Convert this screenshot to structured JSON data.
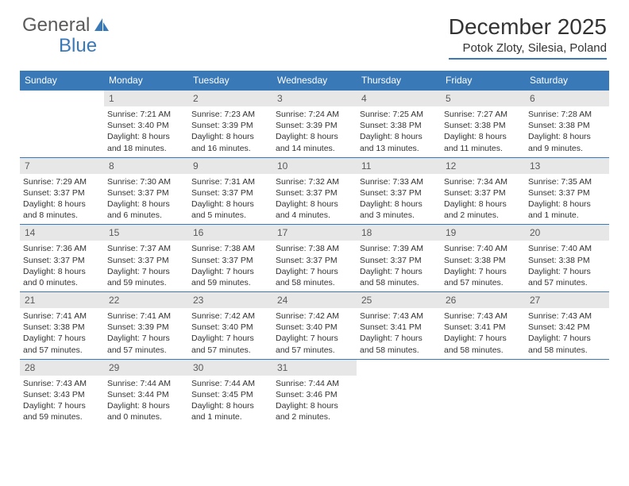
{
  "logo": {
    "text1": "General",
    "text2": "Blue"
  },
  "title": "December 2025",
  "location": "Potok Zloty, Silesia, Poland",
  "colors": {
    "header_bg": "#3a79b7",
    "header_text": "#ffffff",
    "daynum_bg": "#e7e7e7",
    "daynum_text": "#5a5a5a",
    "border": "#3a79b7",
    "body_text": "#333333",
    "background": "#ffffff"
  },
  "fonts": {
    "title_size": 28,
    "location_size": 15,
    "dayhead_size": 12,
    "daynum_size": 12,
    "info_size": 10.5
  },
  "daynames": [
    "Sunday",
    "Monday",
    "Tuesday",
    "Wednesday",
    "Thursday",
    "Friday",
    "Saturday"
  ],
  "weeks": [
    [
      {
        "blank": true
      },
      {
        "n": "1",
        "sr": "7:21 AM",
        "ss": "3:40 PM",
        "dl": "8 hours and 18 minutes."
      },
      {
        "n": "2",
        "sr": "7:23 AM",
        "ss": "3:39 PM",
        "dl": "8 hours and 16 minutes."
      },
      {
        "n": "3",
        "sr": "7:24 AM",
        "ss": "3:39 PM",
        "dl": "8 hours and 14 minutes."
      },
      {
        "n": "4",
        "sr": "7:25 AM",
        "ss": "3:38 PM",
        "dl": "8 hours and 13 minutes."
      },
      {
        "n": "5",
        "sr": "7:27 AM",
        "ss": "3:38 PM",
        "dl": "8 hours and 11 minutes."
      },
      {
        "n": "6",
        "sr": "7:28 AM",
        "ss": "3:38 PM",
        "dl": "8 hours and 9 minutes."
      }
    ],
    [
      {
        "n": "7",
        "sr": "7:29 AM",
        "ss": "3:37 PM",
        "dl": "8 hours and 8 minutes."
      },
      {
        "n": "8",
        "sr": "7:30 AM",
        "ss": "3:37 PM",
        "dl": "8 hours and 6 minutes."
      },
      {
        "n": "9",
        "sr": "7:31 AM",
        "ss": "3:37 PM",
        "dl": "8 hours and 5 minutes."
      },
      {
        "n": "10",
        "sr": "7:32 AM",
        "ss": "3:37 PM",
        "dl": "8 hours and 4 minutes."
      },
      {
        "n": "11",
        "sr": "7:33 AM",
        "ss": "3:37 PM",
        "dl": "8 hours and 3 minutes."
      },
      {
        "n": "12",
        "sr": "7:34 AM",
        "ss": "3:37 PM",
        "dl": "8 hours and 2 minutes."
      },
      {
        "n": "13",
        "sr": "7:35 AM",
        "ss": "3:37 PM",
        "dl": "8 hours and 1 minute."
      }
    ],
    [
      {
        "n": "14",
        "sr": "7:36 AM",
        "ss": "3:37 PM",
        "dl": "8 hours and 0 minutes."
      },
      {
        "n": "15",
        "sr": "7:37 AM",
        "ss": "3:37 PM",
        "dl": "7 hours and 59 minutes."
      },
      {
        "n": "16",
        "sr": "7:38 AM",
        "ss": "3:37 PM",
        "dl": "7 hours and 59 minutes."
      },
      {
        "n": "17",
        "sr": "7:38 AM",
        "ss": "3:37 PM",
        "dl": "7 hours and 58 minutes."
      },
      {
        "n": "18",
        "sr": "7:39 AM",
        "ss": "3:37 PM",
        "dl": "7 hours and 58 minutes."
      },
      {
        "n": "19",
        "sr": "7:40 AM",
        "ss": "3:38 PM",
        "dl": "7 hours and 57 minutes."
      },
      {
        "n": "20",
        "sr": "7:40 AM",
        "ss": "3:38 PM",
        "dl": "7 hours and 57 minutes."
      }
    ],
    [
      {
        "n": "21",
        "sr": "7:41 AM",
        "ss": "3:38 PM",
        "dl": "7 hours and 57 minutes."
      },
      {
        "n": "22",
        "sr": "7:41 AM",
        "ss": "3:39 PM",
        "dl": "7 hours and 57 minutes."
      },
      {
        "n": "23",
        "sr": "7:42 AM",
        "ss": "3:40 PM",
        "dl": "7 hours and 57 minutes."
      },
      {
        "n": "24",
        "sr": "7:42 AM",
        "ss": "3:40 PM",
        "dl": "7 hours and 57 minutes."
      },
      {
        "n": "25",
        "sr": "7:43 AM",
        "ss": "3:41 PM",
        "dl": "7 hours and 58 minutes."
      },
      {
        "n": "26",
        "sr": "7:43 AM",
        "ss": "3:41 PM",
        "dl": "7 hours and 58 minutes."
      },
      {
        "n": "27",
        "sr": "7:43 AM",
        "ss": "3:42 PM",
        "dl": "7 hours and 58 minutes."
      }
    ],
    [
      {
        "n": "28",
        "sr": "7:43 AM",
        "ss": "3:43 PM",
        "dl": "7 hours and 59 minutes."
      },
      {
        "n": "29",
        "sr": "7:44 AM",
        "ss": "3:44 PM",
        "dl": "8 hours and 0 minutes."
      },
      {
        "n": "30",
        "sr": "7:44 AM",
        "ss": "3:45 PM",
        "dl": "8 hours and 1 minute."
      },
      {
        "n": "31",
        "sr": "7:44 AM",
        "ss": "3:46 PM",
        "dl": "8 hours and 2 minutes."
      },
      {
        "blank": true
      },
      {
        "blank": true
      },
      {
        "blank": true
      }
    ]
  ],
  "labels": {
    "sunrise": "Sunrise: ",
    "sunset": "Sunset: ",
    "daylight": "Daylight: "
  }
}
